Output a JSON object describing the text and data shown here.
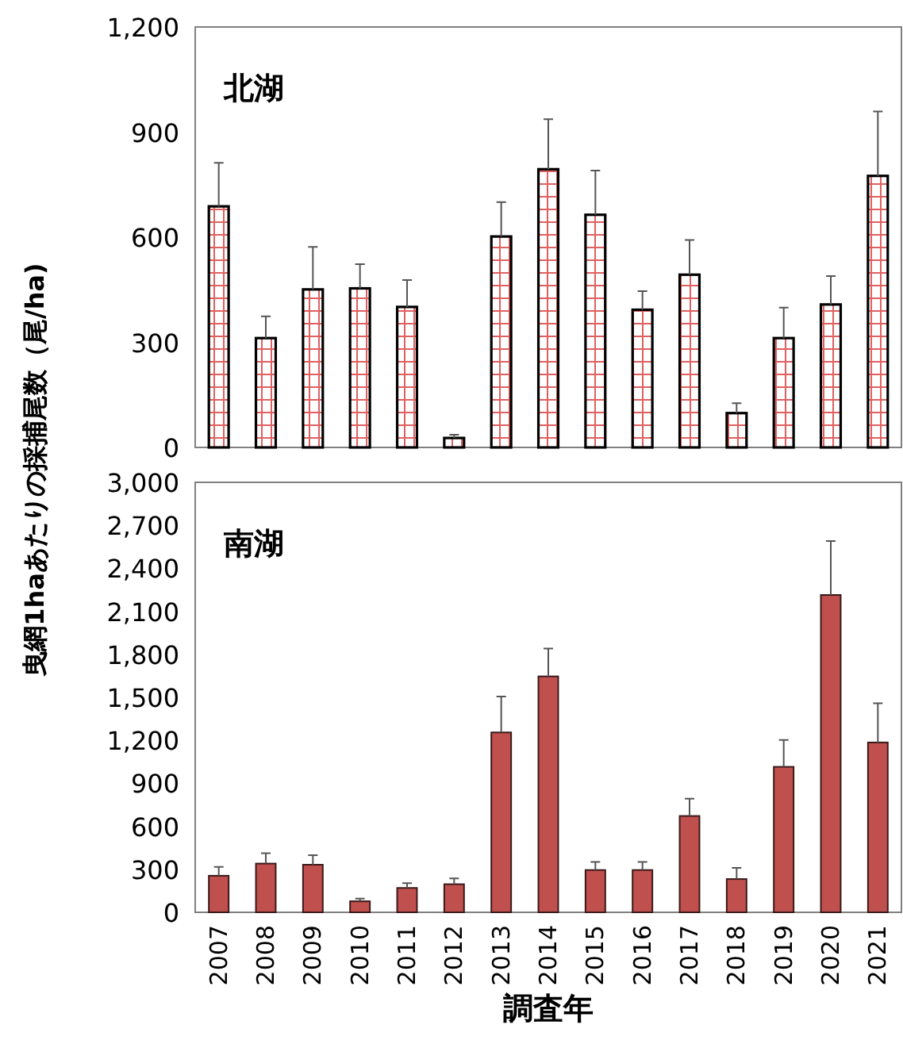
{
  "chart_data": [
    {
      "type": "bar",
      "title": "北湖",
      "ylabel": "曳網1haあたりの採捕尾数（尾/ha)",
      "categories": [
        "2007",
        "2008",
        "2009",
        "2010",
        "2011",
        "2012",
        "2013",
        "2014",
        "2015",
        "2016",
        "2017",
        "2018",
        "2019",
        "2020",
        "2021"
      ],
      "values": [
        688,
        312,
        451,
        454,
        401,
        27,
        602,
        794,
        664,
        393,
        493,
        98,
        312,
        408,
        775
      ],
      "errors": [
        [
          688,
          812
        ],
        [
          312,
          374
        ],
        [
          451,
          572
        ],
        [
          454,
          523
        ],
        [
          401,
          478
        ],
        [
          27,
          36
        ],
        [
          602,
          700
        ],
        [
          794,
          937
        ],
        [
          664,
          790
        ],
        [
          393,
          446
        ],
        [
          493,
          592
        ],
        [
          98,
          126
        ],
        [
          312,
          399
        ],
        [
          408,
          489
        ],
        [
          775,
          959
        ]
      ],
      "color": "#000000",
      "ylim": [
        0,
        1200
      ],
      "yticks": [
        0,
        300,
        600,
        900,
        {
          "value": 1200,
          "label": "1,200"
        }
      ],
      "tick_labels": "y"
    },
    {
      "type": "bar",
      "title": "南湖",
      "xlabel": "調査年",
      "categories": [
        "2007",
        "2008",
        "2009",
        "2010",
        "2011",
        "2012",
        "2013",
        "2014",
        "2015",
        "2016",
        "2017",
        "2018",
        "2019",
        "2020",
        "2021"
      ],
      "values": [
        255,
        340,
        332,
        77,
        170,
        196,
        1255,
        1646,
        295,
        295,
        672,
        232,
        1015,
        2214,
        1185
      ],
      "errors": [
        [
          255,
          317
        ],
        [
          340,
          413
        ],
        [
          332,
          399
        ],
        [
          77,
          96
        ],
        [
          170,
          203
        ],
        [
          196,
          236
        ],
        [
          1255,
          1506
        ],
        [
          1646,
          1841
        ],
        [
          295,
          351
        ],
        [
          295,
          351
        ],
        [
          672,
          793
        ],
        [
          232,
          310
        ],
        [
          1015,
          1203
        ],
        [
          2214,
          2590
        ],
        [
          1185,
          1458
        ]
      ],
      "color": "#c0504d",
      "ylim": [
        0,
        3000
      ],
      "yticks": [
        0,
        300,
        600,
        900,
        {
          "value": 1200,
          "label": "1,200"
        },
        {
          "value": 1500,
          "label": "1,500"
        },
        {
          "value": 1800,
          "label": "1,800"
        },
        {
          "value": 2100,
          "label": "2,100"
        },
        {
          "value": 2400,
          "label": "2,400"
        },
        {
          "value": 2700,
          "label": "2,700"
        },
        {
          "value": 3000,
          "label": "3,000"
        }
      ]
    }
  ]
}
